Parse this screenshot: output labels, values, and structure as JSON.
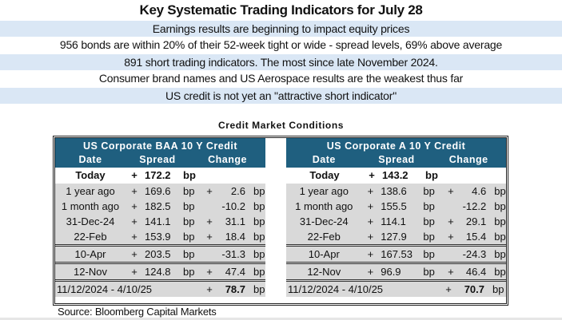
{
  "banner": {
    "title": "Key Systematic Trading Indicators for July 28",
    "lines": [
      "Earnings results are beginning to impact equity prices",
      "956 bonds are within 20% of their 52-week tight or wide - spread levels, 69% above average",
      "891 short trading indicators. The most since late November 2024.",
      "Consumer brand names and US Aerospace results are the weakest thus far",
      "US credit is not yet an \"attractive short indicator\""
    ]
  },
  "section": {
    "title": "Credit Market Conditions"
  },
  "colors": {
    "header_bg": "#1f5f7f",
    "banner_blue": "#dae7f5",
    "row_gray": "#d9d9d9"
  },
  "tables": {
    "baa": {
      "title": "US Corporate BAA 10 Y  Credit",
      "headers": {
        "date": "Date",
        "spread": "Spread",
        "change": "Change"
      },
      "today": {
        "date": "Today",
        "plus": "+",
        "spread": "172.2",
        "unit": "bp"
      },
      "rows": [
        {
          "date": "1 year ago",
          "plus": "+",
          "spread": "169.6",
          "unit": "bp",
          "chg_sign": "+",
          "change": "2.6",
          "chg_unit": "bp"
        },
        {
          "date": "1 month ago",
          "plus": "+",
          "spread": "182.5",
          "unit": "bp",
          "chg_sign": "",
          "change": "-10.2",
          "chg_unit": "bp"
        },
        {
          "date": "31-Dec-24",
          "plus": "+",
          "spread": "141.1",
          "unit": "bp",
          "chg_sign": "+",
          "change": "31.1",
          "chg_unit": "bp"
        },
        {
          "date": "22-Feb",
          "plus": "+",
          "spread": "153.9",
          "unit": "bp",
          "chg_sign": "+",
          "change": "18.4",
          "chg_unit": "bp"
        },
        {
          "date": "10-Apr",
          "plus": "+",
          "spread": "203.5",
          "unit": "bp",
          "chg_sign": "",
          "change": "-31.3",
          "chg_unit": "bp"
        },
        {
          "date": "12-Nov",
          "plus": "+",
          "spread": "124.8",
          "unit": "bp",
          "chg_sign": "+",
          "change": "47.4",
          "chg_unit": "bp"
        }
      ],
      "range": {
        "label": "11/12/2024 - 4/10/25",
        "sign": "+",
        "value": "78.7",
        "unit": "bp"
      }
    },
    "a": {
      "title": "US Corporate A 10 Y Credit",
      "headers": {
        "date": "Date",
        "spread": "Spread",
        "change": "Change"
      },
      "today": {
        "date": "Today",
        "plus": "+",
        "spread": "143.2",
        "unit": "bp"
      },
      "rows": [
        {
          "date": "1 year ago",
          "plus": "+",
          "spread": "138.6",
          "unit": "bp",
          "chg_sign": "+",
          "change": "4.6",
          "chg_unit": "bp"
        },
        {
          "date": "1 month ago",
          "plus": "+",
          "spread": "155.5",
          "unit": "bp",
          "chg_sign": "",
          "change": "-12.2",
          "chg_unit": "bp"
        },
        {
          "date": "31-Dec-24",
          "plus": "+",
          "spread": "114.1",
          "unit": "bp",
          "chg_sign": "+",
          "change": "29.1",
          "chg_unit": "bp"
        },
        {
          "date": "22-Feb",
          "plus": "+",
          "spread": "127.9",
          "unit": "bp",
          "chg_sign": "+",
          "change": "15.4",
          "chg_unit": "bp"
        },
        {
          "date": "10-Apr",
          "plus": "+",
          "spread": "167.53",
          "unit": "bp",
          "chg_sign": "",
          "change": "-24.3",
          "chg_unit": "bp"
        },
        {
          "date": "12-Nov",
          "plus": "+",
          "spread": "96.9",
          "unit": "bp",
          "chg_sign": "+",
          "change": "46.4",
          "chg_unit": "bp"
        }
      ],
      "range": {
        "label": "11/12/2024 - 4/10/25",
        "sign": "+",
        "value": "70.7",
        "unit": "bp"
      }
    }
  },
  "footer": {
    "source": "Source: Bloomberg Capital Markets"
  }
}
